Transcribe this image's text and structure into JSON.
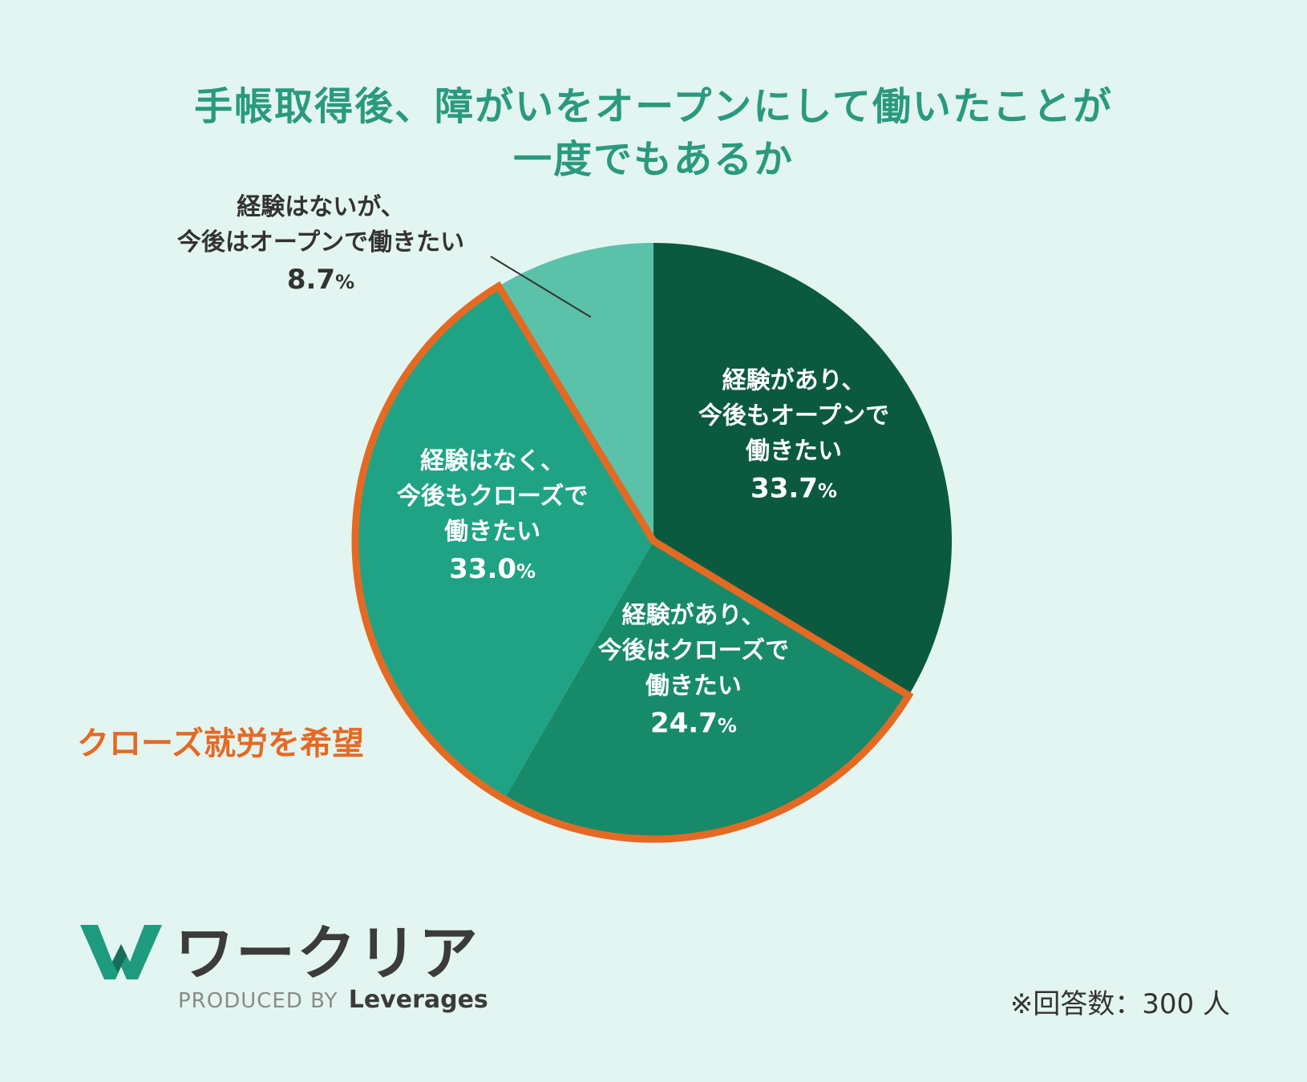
{
  "title": {
    "line1": "手帳取得後、障がいをオープンにして働いたことが",
    "line2": "一度でもあるか"
  },
  "chart_data": {
    "type": "pie",
    "title": "手帳取得後、障がいをオープンにして働いたことが一度でもあるか",
    "slices": [
      {
        "lines": [
          "経験があり、",
          "今後もオープンで",
          "働きたい"
        ],
        "value": 33.7,
        "pct_num": "33.7",
        "color": "#0b5a40",
        "highlight": false,
        "label_placement": "inside"
      },
      {
        "lines": [
          "経験があり、",
          "今後はクローズで",
          "働きたい"
        ],
        "value": 24.7,
        "pct_num": "24.7",
        "color": "#178a6a",
        "highlight": true,
        "label_placement": "inside"
      },
      {
        "lines": [
          "経験はなく、",
          "今後もクローズで",
          "働きたい"
        ],
        "value": 33.0,
        "pct_num": "33.0",
        "color": "#20a385",
        "highlight": true,
        "label_placement": "inside"
      },
      {
        "lines": [
          "経験はないが、",
          "今後はオープンで働きたい"
        ],
        "value": 8.7,
        "pct_num": "8.7",
        "color": "#5bc2a9",
        "highlight": false,
        "label_placement": "outside"
      }
    ],
    "pct_sign": "%",
    "highlight_color": "#e46a24",
    "highlight_label": "クローズ就労を希望"
  },
  "brand": {
    "logo_text": "ワークリア",
    "produced_by": "PRODUCED BY",
    "company": "Leverages",
    "mark_color": "#1f9b7f"
  },
  "footnote": "※回答数：300 人"
}
